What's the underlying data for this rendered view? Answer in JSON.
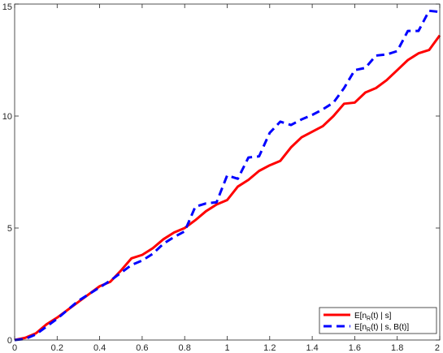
{
  "chart_data": {
    "type": "line",
    "title": "",
    "xlabel": "",
    "ylabel": "",
    "xlim": [
      0,
      2
    ],
    "ylim": [
      0,
      15
    ],
    "grid": false,
    "legend_position": "bottom-right",
    "x_ticks": [
      "0",
      "0.2",
      "0.4",
      "0.6",
      "0.8",
      "1",
      "1.2",
      "1.4",
      "1.6",
      "1.8",
      "2"
    ],
    "y_ticks": [
      "0",
      "5",
      "10",
      "15"
    ],
    "series": [
      {
        "legend_main": "E[n",
        "legend_sub": "R",
        "legend_rest": "(t) | s]",
        "color": "#ff0000",
        "dash": "solid",
        "x": [
          0,
          0.05,
          0.1,
          0.15,
          0.2,
          0.25,
          0.3,
          0.35,
          0.4,
          0.45,
          0.5,
          0.55,
          0.6,
          0.65,
          0.7,
          0.75,
          0.8,
          0.85,
          0.9,
          0.95,
          1.0,
          1.05,
          1.1,
          1.15,
          1.2,
          1.25,
          1.3,
          1.35,
          1.4,
          1.45,
          1.5,
          1.55,
          1.6,
          1.65,
          1.7,
          1.75,
          1.8,
          1.85,
          1.9,
          1.95,
          2.0
        ],
        "y": [
          0,
          0.1,
          0.3,
          0.7,
          1.0,
          1.35,
          1.7,
          2.05,
          2.4,
          2.6,
          3.1,
          3.65,
          3.8,
          4.1,
          4.5,
          4.8,
          5.0,
          5.35,
          5.75,
          6.05,
          6.25,
          6.85,
          7.15,
          7.55,
          7.8,
          8.0,
          8.6,
          9.05,
          9.3,
          9.55,
          10.0,
          10.55,
          10.6,
          11.05,
          11.25,
          11.6,
          12.05,
          12.5,
          12.8,
          12.95,
          13.6
        ]
      },
      {
        "legend_main": "E[n",
        "legend_sub": "R",
        "legend_rest": "(t) | s, B(t)]",
        "color": "#0000ff",
        "dash": "dashed",
        "x": [
          0,
          0.05,
          0.1,
          0.15,
          0.2,
          0.25,
          0.3,
          0.35,
          0.4,
          0.45,
          0.5,
          0.55,
          0.6,
          0.65,
          0.7,
          0.75,
          0.8,
          0.85,
          0.9,
          0.95,
          1.0,
          1.05,
          1.1,
          1.15,
          1.2,
          1.25,
          1.3,
          1.35,
          1.4,
          1.45,
          1.5,
          1.55,
          1.6,
          1.65,
          1.7,
          1.75,
          1.8,
          1.85,
          1.9,
          1.95,
          2.0
        ],
        "y": [
          0,
          0.05,
          0.25,
          0.6,
          0.95,
          1.35,
          1.75,
          2.05,
          2.35,
          2.65,
          3.0,
          3.35,
          3.55,
          3.85,
          4.3,
          4.6,
          4.85,
          5.95,
          6.1,
          6.15,
          7.35,
          7.2,
          8.15,
          8.2,
          9.25,
          9.75,
          9.6,
          9.85,
          10.05,
          10.3,
          10.6,
          11.25,
          12.05,
          12.15,
          12.7,
          12.75,
          12.9,
          13.8,
          13.8,
          14.7,
          14.65
        ]
      }
    ]
  }
}
